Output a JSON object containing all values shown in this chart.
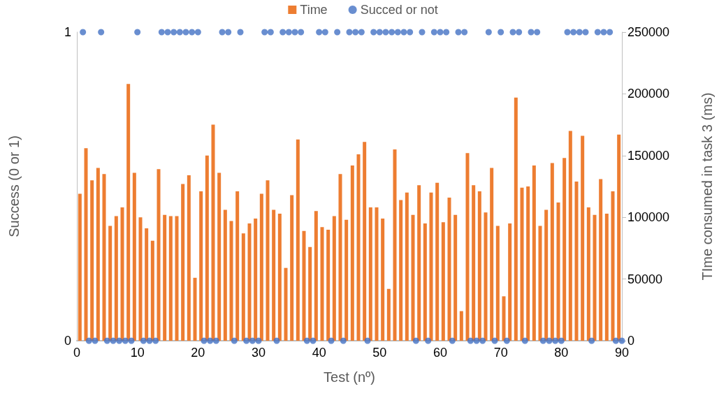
{
  "chart_data": {
    "type": "bar",
    "xlabel": "Test (nº)",
    "ylabel": "Success (0 or 1)",
    "y2label": "TIme consumed in task 3 (ms)",
    "xlim": [
      0,
      90
    ],
    "xticks": [
      0,
      10,
      20,
      30,
      40,
      50,
      60,
      70,
      80,
      90
    ],
    "ylim": [
      0,
      1
    ],
    "yticks": [
      0,
      1
    ],
    "y2lim": [
      0,
      250000
    ],
    "y2ticks": [
      0,
      50000,
      100000,
      150000,
      200000,
      250000
    ],
    "legend": "top",
    "marker": "circle",
    "series": [
      {
        "name": "Time",
        "axis": "y2",
        "color": "#ed7d31",
        "x": [
          0.5,
          1.5,
          2.5,
          3.5,
          4.5,
          5.5,
          6.5,
          7.5,
          8.5,
          9.5,
          10.5,
          11.5,
          12.5,
          13.5,
          14.5,
          15.5,
          16.5,
          17.5,
          18.5,
          19.5,
          20.5,
          21.5,
          22.5,
          23.5,
          24.5,
          25.5,
          26.5,
          27.5,
          28.5,
          29.5,
          30.5,
          31.5,
          32.5,
          33.5,
          34.5,
          35.5,
          36.5,
          37.5,
          38.5,
          39.5,
          40.5,
          41.5,
          42.5,
          43.5,
          44.5,
          45.5,
          46.5,
          47.5,
          48.5,
          49.5,
          50.5,
          51.5,
          52.5,
          53.5,
          54.5,
          55.5,
          56.5,
          57.5,
          58.5,
          59.5,
          60.5,
          61.5,
          62.5,
          63.5,
          64.5,
          65.5,
          66.5,
          67.5,
          68.5,
          69.5,
          70.5,
          71.5,
          72.5,
          73.5,
          74.5,
          75.5,
          76.5,
          77.5,
          78.5,
          79.5,
          80.5,
          81.5,
          82.5,
          83.5,
          84.5,
          85.5,
          86.5,
          87.5,
          88.5,
          89.5
        ],
        "values": [
          119000,
          156000,
          130000,
          140000,
          135000,
          93000,
          101000,
          108000,
          208000,
          136000,
          100000,
          91000,
          81000,
          139000,
          102000,
          101000,
          101000,
          127000,
          134000,
          51000,
          121000,
          150000,
          175000,
          136000,
          106000,
          97000,
          121000,
          87000,
          95000,
          99000,
          119000,
          130000,
          106000,
          103000,
          59000,
          118000,
          163000,
          89000,
          76000,
          105000,
          92000,
          90000,
          101000,
          135000,
          98000,
          142000,
          151000,
          161000,
          108000,
          108000,
          99000,
          42000,
          155000,
          114000,
          120000,
          102000,
          126000,
          95000,
          120000,
          128000,
          96000,
          116000,
          102000,
          24000,
          152000,
          126000,
          121000,
          104000,
          140000,
          93000,
          36000,
          95000,
          197000,
          124000,
          125000,
          142000,
          93000,
          106000,
          144000,
          112000,
          148000,
          170000,
          129000,
          166000,
          108000,
          102000,
          131000,
          103000,
          121000,
          167000
        ]
      },
      {
        "name": "Succed or not",
        "type": "scatter",
        "axis": "y",
        "color": "#4472c4",
        "x": [
          1,
          2,
          3,
          4,
          5,
          6,
          7,
          8,
          9,
          10,
          11,
          12,
          13,
          14,
          15,
          16,
          17,
          18,
          19,
          20,
          21,
          22,
          23,
          24,
          25,
          26,
          27,
          28,
          29,
          30,
          31,
          32,
          33,
          34,
          35,
          36,
          37,
          38,
          39,
          40,
          41,
          42,
          43,
          44,
          45,
          46,
          47,
          48,
          49,
          50,
          51,
          52,
          53,
          54,
          55,
          56,
          57,
          58,
          59,
          60,
          61,
          62,
          63,
          64,
          65,
          66,
          67,
          68,
          69,
          70,
          71,
          72,
          73,
          74,
          75,
          76,
          77,
          78,
          79,
          80,
          81,
          82,
          83,
          84,
          85,
          86,
          87,
          88,
          89,
          90
        ],
        "values": [
          1,
          0,
          0,
          1,
          0,
          0,
          0,
          0,
          0,
          1,
          0,
          0,
          0,
          1,
          1,
          1,
          1,
          1,
          1,
          1,
          0,
          0,
          0,
          1,
          1,
          0,
          1,
          0,
          0,
          0,
          1,
          1,
          0,
          1,
          1,
          1,
          1,
          0,
          0,
          1,
          1,
          0,
          1,
          0,
          1,
          1,
          1,
          0,
          1,
          1,
          1,
          1,
          1,
          1,
          1,
          0,
          1,
          0,
          1,
          1,
          1,
          0,
          1,
          1,
          0,
          0,
          0,
          1,
          0,
          1,
          0,
          1,
          1,
          0,
          1,
          1,
          0,
          0,
          0,
          0,
          1,
          1,
          1,
          1,
          0,
          1,
          1,
          1,
          0,
          0
        ]
      }
    ]
  }
}
